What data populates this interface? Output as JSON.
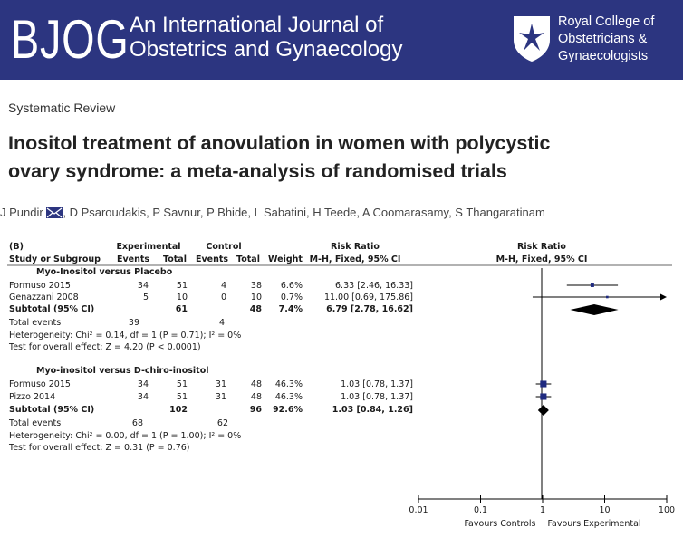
{
  "header": {
    "logo_text": "BJOG",
    "journal_line1": "An International Journal of",
    "journal_line2": "Obstetrics and Gynaecology",
    "rcog_line1": "Royal College of",
    "rcog_line2": "Obstetricians &",
    "rcog_line3": "Gynaecologists"
  },
  "article": {
    "section": "Systematic Review",
    "title_line1": "Inositol treatment of anovulation in women with polycystic",
    "title_line2": "ovary syndrome: a meta-analysis of randomised trials",
    "authors": [
      "J Pundir",
      "D Psaroudakis",
      "P Savnur",
      "P Bhide",
      "L Sabatini",
      "H Teede",
      "A Coomarasamy",
      "S Thangaratinam"
    ]
  },
  "table": {
    "panel_label": "(B)",
    "h_experimental": "Experimental",
    "h_control": "Control",
    "h_risk_ratio": "Risk Ratio",
    "h_study": "Study or Subgroup",
    "h_events": "Events",
    "h_total": "Total",
    "h_weight": "Weight",
    "h_method": "M-H, Fixed, 95% CI",
    "plot_title": "Risk Ratio",
    "plot_method": "M-H, Fixed, 95% CI",
    "subgroups": [
      {
        "name": "Myo-Inositol versus Placebo",
        "studies": [
          {
            "study": "Formuso 2015",
            "e_events": "34",
            "e_total": "51",
            "c_events": "4",
            "c_total": "38",
            "weight": "6.6%",
            "rr_text": "6.33 [2.46, 16.33]"
          },
          {
            "study": "Genazzani 2008",
            "e_events": "5",
            "e_total": "10",
            "c_events": "0",
            "c_total": "10",
            "weight": "0.7%",
            "rr_text": "11.00 [0.69, 175.86]"
          }
        ],
        "subtotal": {
          "label": "Subtotal (95% CI)",
          "e_total": "61",
          "c_total": "48",
          "weight": "7.4%",
          "rr_text": "6.79 [2.78, 16.62]"
        },
        "total_events": {
          "label": "Total events",
          "e": "39",
          "c": "4"
        },
        "heterogeneity": "Heterogeneity: Chi² = 0.14, df = 1 (P = 0.71); I² = 0%",
        "overall": "Test for overall effect: Z = 4.20 (P < 0.0001)"
      },
      {
        "name": "Myo-inositol versus D-chiro-inositol",
        "studies": [
          {
            "study": "Formuso 2015",
            "e_events": "34",
            "e_total": "51",
            "c_events": "31",
            "c_total": "48",
            "weight": "46.3%",
            "rr_text": "1.03 [0.78, 1.37]"
          },
          {
            "study": "Pizzo 2014",
            "e_events": "34",
            "e_total": "51",
            "c_events": "31",
            "c_total": "48",
            "weight": "46.3%",
            "rr_text": "1.03 [0.78, 1.37]"
          }
        ],
        "subtotal": {
          "label": "Subtotal (95% CI)",
          "e_total": "102",
          "c_total": "96",
          "weight": "92.6%",
          "rr_text": "1.03 [0.84, 1.26]"
        },
        "total_events": {
          "label": "Total events",
          "e": "68",
          "c": "62"
        },
        "heterogeneity": "Heterogeneity: Chi² = 0.00, df = 1 (P = 1.00); I² = 0%",
        "overall": "Test for overall effect: Z = 0.31 (P = 0.76)"
      }
    ]
  },
  "chart_data": {
    "type": "scatter",
    "title": "Risk Ratio",
    "subtitle": "M-H, Fixed, 95% CI",
    "xscale": "log",
    "xlim": [
      0.01,
      100
    ],
    "xticks": [
      "0.01",
      "0.1",
      "1",
      "10",
      "100"
    ],
    "xlabel_left": "Favours Controls",
    "xlabel_right": "Favours Experimental",
    "reference_line": 1,
    "rows": [
      {
        "name": "Formuso 2015",
        "kind": "study",
        "rr": 6.33,
        "lo": 2.46,
        "hi": 16.33,
        "weight": 6.6
      },
      {
        "name": "Genazzani 2008",
        "kind": "study",
        "rr": 11.0,
        "lo": 0.69,
        "hi": 175.86,
        "weight": 0.7
      },
      {
        "name": "Subtotal (95% CI)",
        "kind": "subtotal",
        "rr": 6.79,
        "lo": 2.78,
        "hi": 16.62
      },
      {
        "name": "Formuso 2015",
        "kind": "study",
        "rr": 1.03,
        "lo": 0.78,
        "hi": 1.37,
        "weight": 46.3
      },
      {
        "name": "Pizzo 2014",
        "kind": "study",
        "rr": 1.03,
        "lo": 0.78,
        "hi": 1.37,
        "weight": 46.3
      },
      {
        "name": "Subtotal (95% CI)",
        "kind": "subtotal",
        "rr": 1.03,
        "lo": 0.84,
        "hi": 1.26
      }
    ],
    "colors": {
      "marker": "#1f2a80",
      "diamond": "#000000"
    }
  }
}
